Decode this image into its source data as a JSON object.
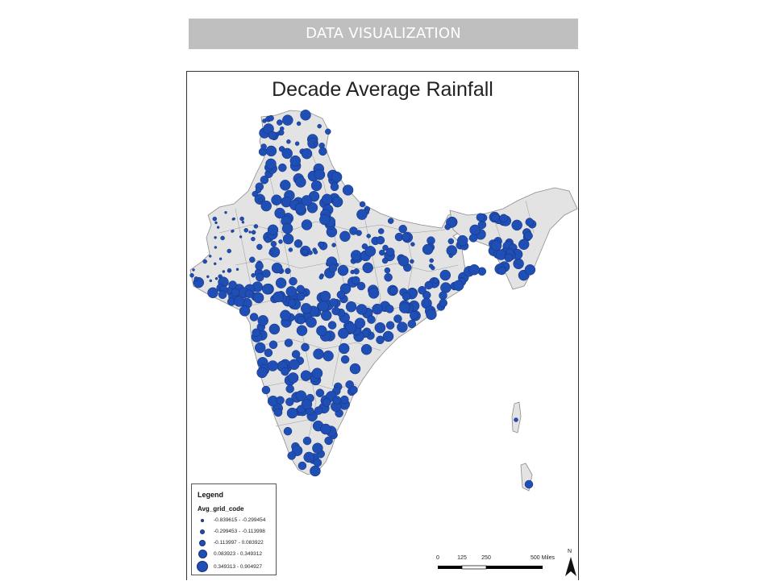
{
  "header": {
    "title": "DATA VISUALIZATION"
  },
  "map": {
    "title": "Decade Average Rainfall",
    "symbol_color": "#1f4eb4",
    "land_color": "#e3e3e3",
    "boundary_color": "#8c8c8c",
    "legend": {
      "title": "Legend",
      "field": "Avg_grid_code",
      "classes": [
        {
          "label": "-0.839615 - -0.299454",
          "size_class": 1
        },
        {
          "label": "-0.299453 - -0.113998",
          "size_class": 2
        },
        {
          "label": "-0.113997 - 0.083922",
          "size_class": 3
        },
        {
          "label": "0.083923 - 0.349312",
          "size_class": 4
        },
        {
          "label": "0.349313 - 0.904927",
          "size_class": 5
        }
      ]
    },
    "scale_bar": {
      "labels": [
        "0",
        "125",
        "250",
        "500 Miles"
      ]
    },
    "north_arrow": {
      "label": "N"
    }
  }
}
